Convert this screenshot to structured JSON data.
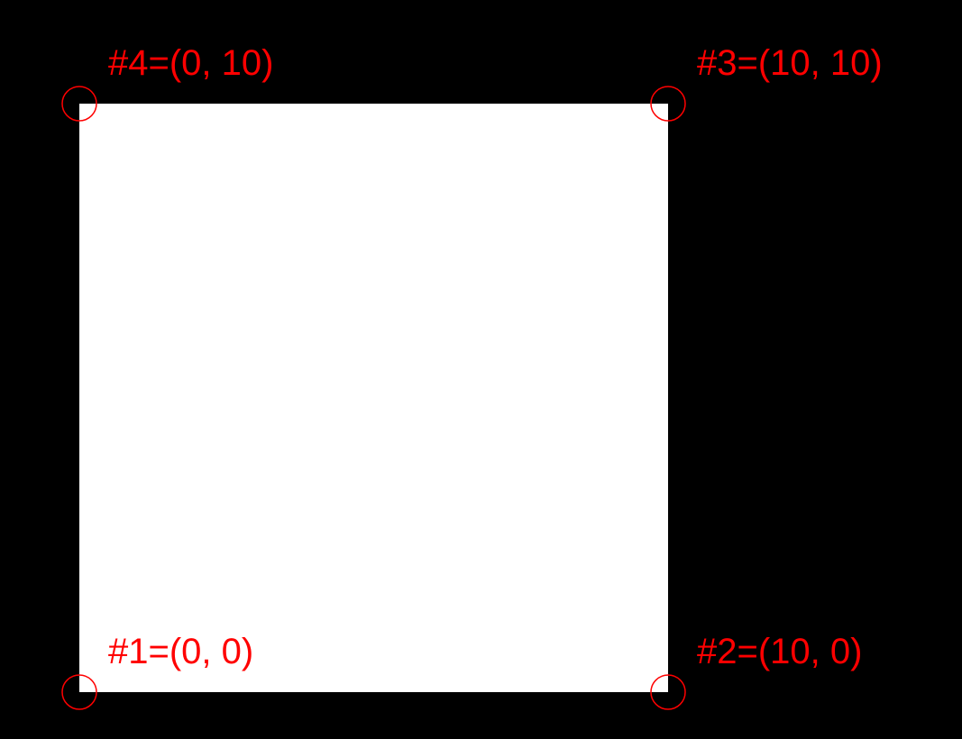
{
  "colors": {
    "background": "#000000",
    "polygon_fill": "#ffffff",
    "annotation": "#ff0000"
  },
  "polygon": {
    "shape": "self-intersecting quadrilateral (bowtie)",
    "vertices": [
      {
        "id": "#1",
        "x": 0,
        "y": 0,
        "label": "#1=(0, 0)"
      },
      {
        "id": "#2",
        "x": 10,
        "y": 0,
        "label": "#2=(10, 0)"
      },
      {
        "id": "#3",
        "x": 10,
        "y": 10,
        "label": "#3=(10, 10)"
      },
      {
        "id": "#4",
        "x": 0,
        "y": 10,
        "label": "#4=(0, 10)"
      }
    ]
  }
}
